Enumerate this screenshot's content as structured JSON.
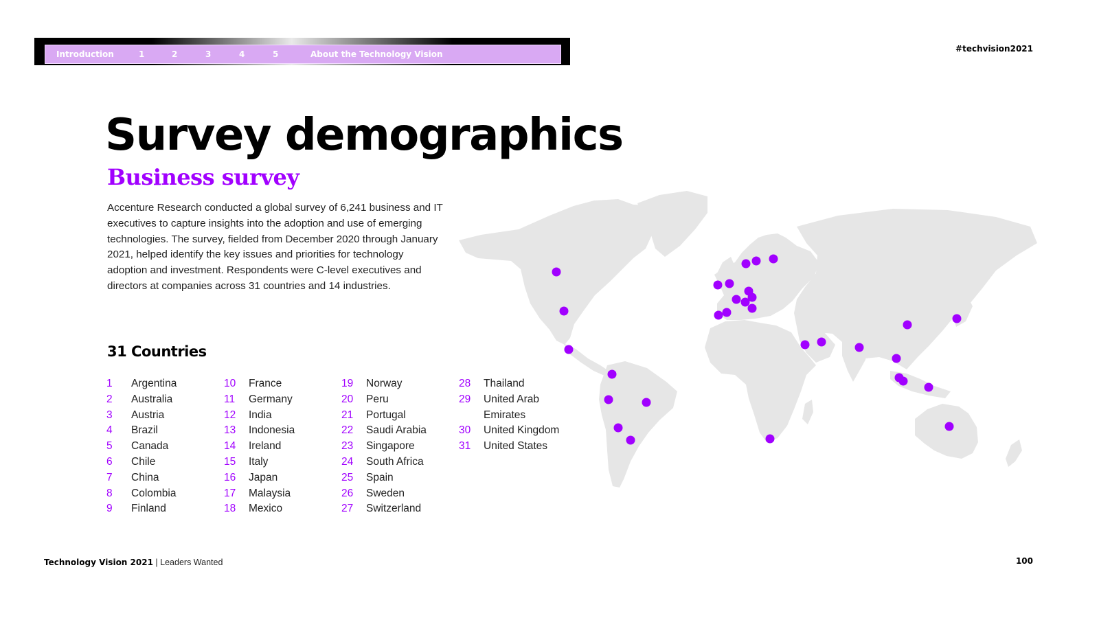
{
  "nav": {
    "items": [
      {
        "label": "Introduction"
      },
      {
        "label": "1"
      },
      {
        "label": "2"
      },
      {
        "label": "3"
      },
      {
        "label": "4"
      },
      {
        "label": "5"
      },
      {
        "label": "About the Technology Vision"
      }
    ]
  },
  "hashtag": "#techvision2021",
  "title": "Survey demographics",
  "subtitle": "Business survey",
  "intro": "Accenture Research conducted a global survey of 6,241 business and IT executives to capture insights into the adoption and use of emerging technologies. The survey, fielded from December 2020 through January 2021, helped identify the key issues and priorities for technology adoption and investment. Respondents were C-level executives and directors at companies across 31 countries and 14 industries.",
  "countries": {
    "heading": "31 Countries",
    "columns": [
      [
        {
          "num": "1",
          "name": "Argentina"
        },
        {
          "num": "2",
          "name": "Australia"
        },
        {
          "num": "3",
          "name": "Austria"
        },
        {
          "num": "4",
          "name": "Brazil"
        },
        {
          "num": "5",
          "name": "Canada"
        },
        {
          "num": "6",
          "name": "Chile"
        },
        {
          "num": "7",
          "name": "China"
        },
        {
          "num": "8",
          "name": "Colombia"
        },
        {
          "num": "9",
          "name": "Finland"
        }
      ],
      [
        {
          "num": "10",
          "name": "France"
        },
        {
          "num": "11",
          "name": "Germany"
        },
        {
          "num": "12",
          "name": "India"
        },
        {
          "num": "13",
          "name": "Indonesia"
        },
        {
          "num": "14",
          "name": "Ireland"
        },
        {
          "num": "15",
          "name": "Italy"
        },
        {
          "num": "16",
          "name": "Japan"
        },
        {
          "num": "17",
          "name": "Malaysia"
        },
        {
          "num": "18",
          "name": "Mexico"
        }
      ],
      [
        {
          "num": "19",
          "name": "Norway"
        },
        {
          "num": "20",
          "name": "Peru"
        },
        {
          "num": "21",
          "name": "Portugal"
        },
        {
          "num": "22",
          "name": "Saudi Arabia"
        },
        {
          "num": "23",
          "name": "Singapore"
        },
        {
          "num": "24",
          "name": "South Africa"
        },
        {
          "num": "25",
          "name": "Spain"
        },
        {
          "num": "26",
          "name": "Sweden"
        },
        {
          "num": "27",
          "name": "Switzerland"
        }
      ],
      [
        {
          "num": "28",
          "name": "Thailand"
        },
        {
          "num": "29",
          "name": "United Arab"
        },
        {
          "num": "",
          "name": "Emirates"
        },
        {
          "num": "30",
          "name": "United Kingdom"
        },
        {
          "num": "31",
          "name": "United States"
        }
      ]
    ]
  },
  "map": {
    "land_color": "#e6e6e6",
    "marker_color": "#a100ff"
  },
  "footer": {
    "brand": "Technology Vision 2021",
    "separator": " | ",
    "tagline": "Leaders Wanted",
    "page_number": "100"
  }
}
